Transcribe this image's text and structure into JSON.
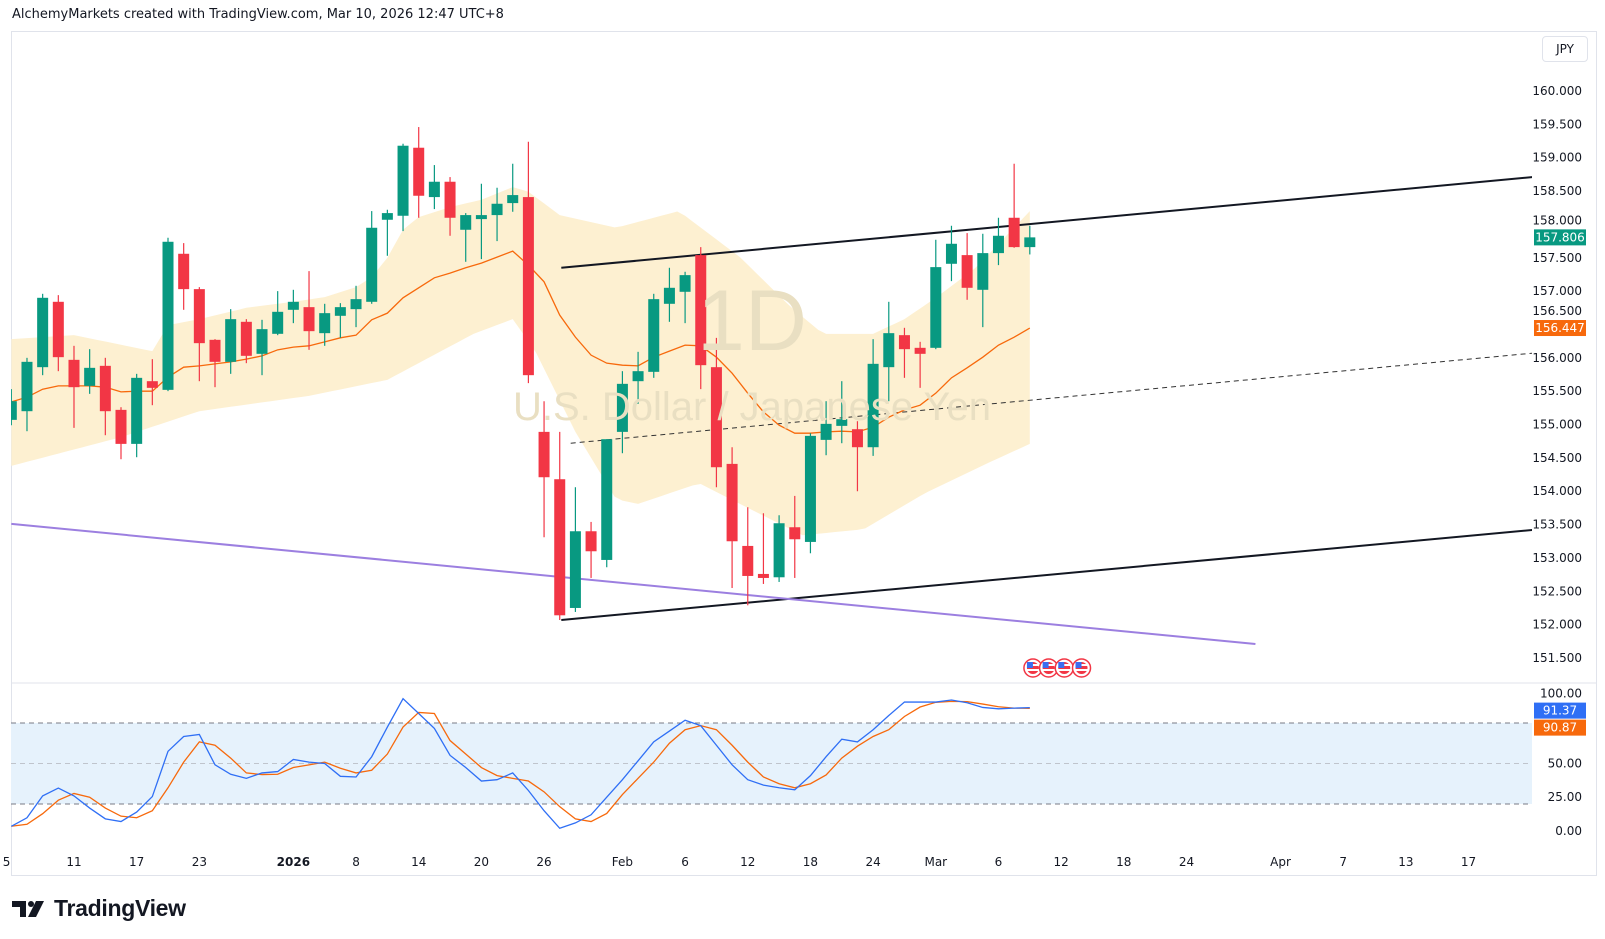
{
  "header": {
    "text": "AlchemyMarkets created with TradingView.com, Mar 10, 2026 12:47 UTC+8"
  },
  "price_axis": {
    "currency": "JPY",
    "labels": [
      "160.000",
      "159.500",
      "159.000",
      "158.500",
      "158.000",
      "157.500",
      "157.000",
      "156.500",
      "156.000",
      "155.500",
      "155.000",
      "154.500",
      "154.000",
      "153.500",
      "153.000",
      "152.500",
      "152.000",
      "151.500"
    ],
    "label_values": [
      160,
      159.5,
      159,
      158.5,
      158,
      157.5,
      157,
      156.5,
      156,
      155.5,
      155,
      154.5,
      154,
      153.5,
      153,
      152.5,
      152,
      151.5
    ],
    "last_price": "157.806",
    "ma_value": "156.447"
  },
  "watermark": {
    "interval": "1D",
    "symbol": "U.S. Dollar / Japanese Yen"
  },
  "oscillator": {
    "labels": [
      "100.00",
      "50.00",
      "25.00",
      "0.00"
    ],
    "label_values": [
      100,
      50,
      25,
      0
    ],
    "k_value": "91.37",
    "d_value": "90.87"
  },
  "time_axis": {
    "labels": [
      {
        "text": "5",
        "bar": -0.3,
        "bold": false
      },
      {
        "text": "11",
        "bar": 4,
        "bold": false
      },
      {
        "text": "17",
        "bar": 8,
        "bold": false
      },
      {
        "text": "23",
        "bar": 12,
        "bold": false
      },
      {
        "text": "2026",
        "bar": 18,
        "bold": true
      },
      {
        "text": "8",
        "bar": 22,
        "bold": false
      },
      {
        "text": "14",
        "bar": 26,
        "bold": false
      },
      {
        "text": "20",
        "bar": 30,
        "bold": false
      },
      {
        "text": "26",
        "bar": 34,
        "bold": false
      },
      {
        "text": "Feb",
        "bar": 39,
        "bold": false
      },
      {
        "text": "6",
        "bar": 43,
        "bold": false
      },
      {
        "text": "12",
        "bar": 47,
        "bold": false
      },
      {
        "text": "18",
        "bar": 51,
        "bold": false
      },
      {
        "text": "24",
        "bar": 55,
        "bold": false
      },
      {
        "text": "Mar",
        "bar": 59,
        "bold": false
      },
      {
        "text": "6",
        "bar": 63,
        "bold": false
      },
      {
        "text": "12",
        "bar": 67,
        "bold": false
      },
      {
        "text": "18",
        "bar": 71,
        "bold": false
      },
      {
        "text": "24",
        "bar": 75,
        "bold": false
      },
      {
        "text": "Apr",
        "bar": 81,
        "bold": false
      },
      {
        "text": "7",
        "bar": 85,
        "bold": false
      },
      {
        "text": "13",
        "bar": 89,
        "bold": false
      },
      {
        "text": "17",
        "bar": 93,
        "bold": false
      }
    ]
  },
  "logo": {
    "text": "TradingView"
  },
  "colors": {
    "up": "#089981",
    "down": "#f23645",
    "ma": "#f7690c",
    "band": "#fdf0d1",
    "stoch_k": "#2f6ff5",
    "stoch_d": "#f7690c",
    "osc_band": "#e6f2fc",
    "trendline": "#131722",
    "support": "#9c7fe0",
    "grid_border": "#e0e3eb"
  },
  "chart_data": {
    "type": "candlestick",
    "title": "U.S. Dollar / Japanese Yen, 1D",
    "xlim": [
      -0.02,
      97.05
    ],
    "ylim": [
      151.125,
      160.9
    ],
    "candles_ohlc": [
      [
        155.07,
        155.53,
        154.99,
        155.35
      ],
      [
        155.2,
        156.0,
        154.9,
        155.94
      ],
      [
        155.86,
        156.96,
        155.74,
        156.9
      ],
      [
        156.84,
        156.94,
        155.8,
        156.01
      ],
      [
        155.97,
        156.18,
        154.95,
        155.56
      ],
      [
        155.58,
        156.13,
        155.46,
        155.85
      ],
      [
        155.88,
        156.0,
        154.84,
        155.2
      ],
      [
        155.22,
        155.26,
        154.48,
        154.71
      ],
      [
        154.71,
        155.76,
        154.51,
        155.7
      ],
      [
        155.65,
        155.98,
        155.29,
        155.55
      ],
      [
        155.52,
        157.8,
        155.5,
        157.74
      ],
      [
        157.56,
        157.72,
        156.72,
        157.03
      ],
      [
        157.03,
        157.06,
        155.65,
        156.22
      ],
      [
        156.27,
        156.28,
        155.56,
        155.94
      ],
      [
        155.94,
        156.73,
        155.76,
        156.58
      ],
      [
        156.54,
        156.58,
        155.92,
        156.03
      ],
      [
        156.06,
        156.57,
        155.74,
        156.43
      ],
      [
        156.36,
        157.0,
        156.34,
        156.69
      ],
      [
        156.72,
        157.02,
        156.52,
        156.84
      ],
      [
        156.76,
        157.3,
        156.12,
        156.4
      ],
      [
        156.37,
        156.81,
        156.18,
        156.67
      ],
      [
        156.63,
        156.82,
        156.3,
        156.76
      ],
      [
        156.73,
        157.08,
        156.46,
        156.88
      ],
      [
        156.84,
        158.2,
        156.81,
        157.95
      ],
      [
        158.07,
        158.22,
        157.53,
        158.17
      ],
      [
        158.13,
        159.21,
        157.9,
        159.18
      ],
      [
        159.15,
        159.46,
        158.1,
        158.43
      ],
      [
        158.41,
        158.89,
        158.23,
        158.64
      ],
      [
        158.64,
        158.71,
        157.83,
        158.1
      ],
      [
        157.92,
        158.17,
        157.44,
        158.14
      ],
      [
        158.08,
        158.61,
        157.48,
        158.14
      ],
      [
        158.14,
        158.55,
        157.75,
        158.31
      ],
      [
        158.32,
        158.91,
        158.19,
        158.44
      ],
      [
        158.41,
        159.24,
        155.62,
        155.74
      ],
      [
        154.89,
        155.35,
        153.31,
        154.21
      ],
      [
        154.18,
        154.89,
        152.07,
        152.14
      ],
      [
        152.25,
        154.06,
        152.19,
        153.4
      ],
      [
        153.4,
        153.54,
        152.7,
        153.1
      ],
      [
        152.97,
        154.78,
        152.86,
        154.78
      ],
      [
        154.89,
        155.8,
        154.57,
        155.61
      ],
      [
        155.65,
        156.09,
        155.31,
        155.8
      ],
      [
        155.79,
        156.96,
        155.7,
        156.88
      ],
      [
        156.81,
        157.35,
        156.54,
        157.05
      ],
      [
        156.99,
        157.29,
        156.52,
        157.24
      ],
      [
        157.54,
        157.66,
        155.53,
        155.89
      ],
      [
        155.86,
        156.3,
        154.06,
        154.36
      ],
      [
        154.41,
        154.66,
        152.55,
        153.25
      ],
      [
        153.18,
        153.76,
        152.29,
        152.73
      ],
      [
        152.76,
        153.67,
        152.61,
        152.7
      ],
      [
        152.71,
        153.64,
        152.64,
        153.52
      ],
      [
        153.46,
        153.93,
        152.7,
        153.28
      ],
      [
        153.24,
        154.87,
        153.07,
        154.83
      ],
      [
        154.77,
        155.35,
        154.54,
        155.01
      ],
      [
        154.98,
        155.65,
        154.72,
        155.08
      ],
      [
        154.93,
        155.05,
        154.0,
        154.66
      ],
      [
        154.66,
        156.28,
        154.53,
        155.91
      ],
      [
        155.86,
        156.84,
        155.35,
        156.37
      ],
      [
        156.34,
        156.45,
        155.7,
        156.13
      ],
      [
        156.15,
        156.24,
        155.55,
        156.06
      ],
      [
        156.15,
        157.77,
        156.13,
        157.36
      ],
      [
        157.41,
        157.98,
        157.15,
        157.71
      ],
      [
        157.54,
        157.87,
        156.87,
        157.05
      ],
      [
        157.02,
        157.86,
        156.46,
        157.57
      ],
      [
        157.57,
        158.1,
        157.39,
        157.83
      ],
      [
        158.1,
        158.91,
        157.65,
        157.66
      ],
      [
        157.66,
        157.98,
        157.55,
        157.806
      ]
    ],
    "ma": [
      155.34,
      155.41,
      155.53,
      155.58,
      155.58,
      155.58,
      155.56,
      155.49,
      155.5,
      155.5,
      155.71,
      155.86,
      155.88,
      155.91,
      155.94,
      155.98,
      156.03,
      156.12,
      156.16,
      156.18,
      156.24,
      156.3,
      156.34,
      156.57,
      156.67,
      156.9,
      157.05,
      157.2,
      157.27,
      157.35,
      157.42,
      157.51,
      157.6,
      157.39,
      157.14,
      156.64,
      156.31,
      156.04,
      155.92,
      155.89,
      155.88,
      156.01,
      156.1,
      156.19,
      156.18,
      156.01,
      155.77,
      155.47,
      155.19,
      154.99,
      154.87,
      154.87,
      154.89,
      154.9,
      154.89,
      154.96,
      155.11,
      155.22,
      155.29,
      155.47,
      155.7,
      155.85,
      156.01,
      156.19,
      156.31,
      156.447
    ],
    "band_upper": [
      [
        0,
        156.28
      ],
      [
        4,
        156.34
      ],
      [
        9,
        156.1
      ],
      [
        10,
        156.49
      ],
      [
        12,
        156.58
      ],
      [
        15,
        156.75
      ],
      [
        18,
        156.84
      ],
      [
        20,
        156.91
      ],
      [
        22,
        157.06
      ],
      [
        23,
        157.21
      ],
      [
        24,
        157.5
      ],
      [
        25,
        157.92
      ],
      [
        26,
        158.11
      ],
      [
        28,
        158.26
      ],
      [
        30,
        158.37
      ],
      [
        32,
        158.56
      ],
      [
        33,
        158.49
      ],
      [
        35,
        158.14
      ],
      [
        38.6,
        157.95
      ],
      [
        42.6,
        158.2
      ],
      [
        46.5,
        157.51
      ],
      [
        49.8,
        156.75
      ],
      [
        51.8,
        156.36
      ],
      [
        55,
        156.36
      ],
      [
        57,
        156.58
      ],
      [
        59,
        156.9
      ],
      [
        61.6,
        157.36
      ],
      [
        65,
        158.2
      ]
    ],
    "band_lower": [
      [
        0,
        154.38
      ],
      [
        7,
        154.81
      ],
      [
        12,
        155.2
      ],
      [
        19,
        155.43
      ],
      [
        24,
        155.67
      ],
      [
        29.5,
        156.36
      ],
      [
        32,
        156.58
      ],
      [
        33.4,
        156.12
      ],
      [
        36,
        154.89
      ],
      [
        38.6,
        153.88
      ],
      [
        40,
        153.81
      ],
      [
        43.9,
        154.12
      ],
      [
        46.5,
        153.81
      ],
      [
        50.5,
        153.34
      ],
      [
        54.4,
        153.43
      ],
      [
        58.3,
        153.97
      ],
      [
        62.3,
        154.42
      ],
      [
        65,
        154.71
      ]
    ],
    "trendlines": [
      {
        "name": "channel-upper",
        "style": "solid",
        "points": [
          [
            35.1,
            157.35
          ],
          [
            97.1,
            158.71
          ]
        ]
      },
      {
        "name": "channel-lower",
        "style": "solid",
        "points": [
          [
            35.1,
            152.07
          ],
          [
            97.1,
            153.42
          ]
        ]
      },
      {
        "name": "channel-mid",
        "style": "dashed",
        "points": [
          [
            35.7,
            154.72
          ],
          [
            97.1,
            156.07
          ]
        ]
      },
      {
        "name": "support-purple",
        "style": "solid",
        "points": [
          [
            0,
            153.51
          ],
          [
            79.4,
            151.71
          ]
        ]
      }
    ],
    "event_flag_bars": [
      65.2,
      66.2,
      67.2,
      68.3
    ],
    "oscillator": {
      "type": "line",
      "ylim": [
        -20,
        109.6
      ],
      "levels": [
        20,
        50,
        80
      ],
      "series": [
        {
          "name": "K",
          "values": [
            3.5,
            9.8,
            26,
            31.8,
            26,
            17,
            9,
            7,
            14,
            25.5,
            59,
            70,
            71.5,
            49,
            42,
            39,
            43,
            44,
            53,
            51,
            50,
            40.5,
            40,
            55,
            77,
            98,
            87,
            76,
            56,
            47,
            37,
            38,
            43,
            30,
            15,
            2,
            6,
            12,
            25,
            38,
            52,
            66,
            74,
            82,
            78,
            63.5,
            49,
            38,
            34,
            32,
            30.5,
            41,
            55,
            68,
            66,
            75,
            85.5,
            95.5,
            95.5,
            95.5,
            97,
            95,
            91.5,
            90.5,
            91,
            91.37
          ]
        },
        {
          "name": "D",
          "values": [
            3.5,
            5,
            12.8,
            22.8,
            27.8,
            25,
            17,
            11,
            9.8,
            15,
            32,
            51,
            66,
            63.5,
            54,
            43,
            41.8,
            42,
            47,
            49,
            51,
            46.5,
            43,
            45,
            57,
            77,
            87.8,
            87,
            67,
            57,
            47,
            41,
            39,
            37,
            29,
            18,
            9,
            7,
            13,
            27,
            39,
            51,
            65,
            75,
            78,
            75,
            63.5,
            51,
            40,
            35,
            32,
            35,
            41.5,
            54,
            62.8,
            70,
            75,
            84.8,
            91.8,
            95.3,
            96,
            95.8,
            94,
            92,
            91,
            90.87
          ]
        }
      ]
    }
  }
}
